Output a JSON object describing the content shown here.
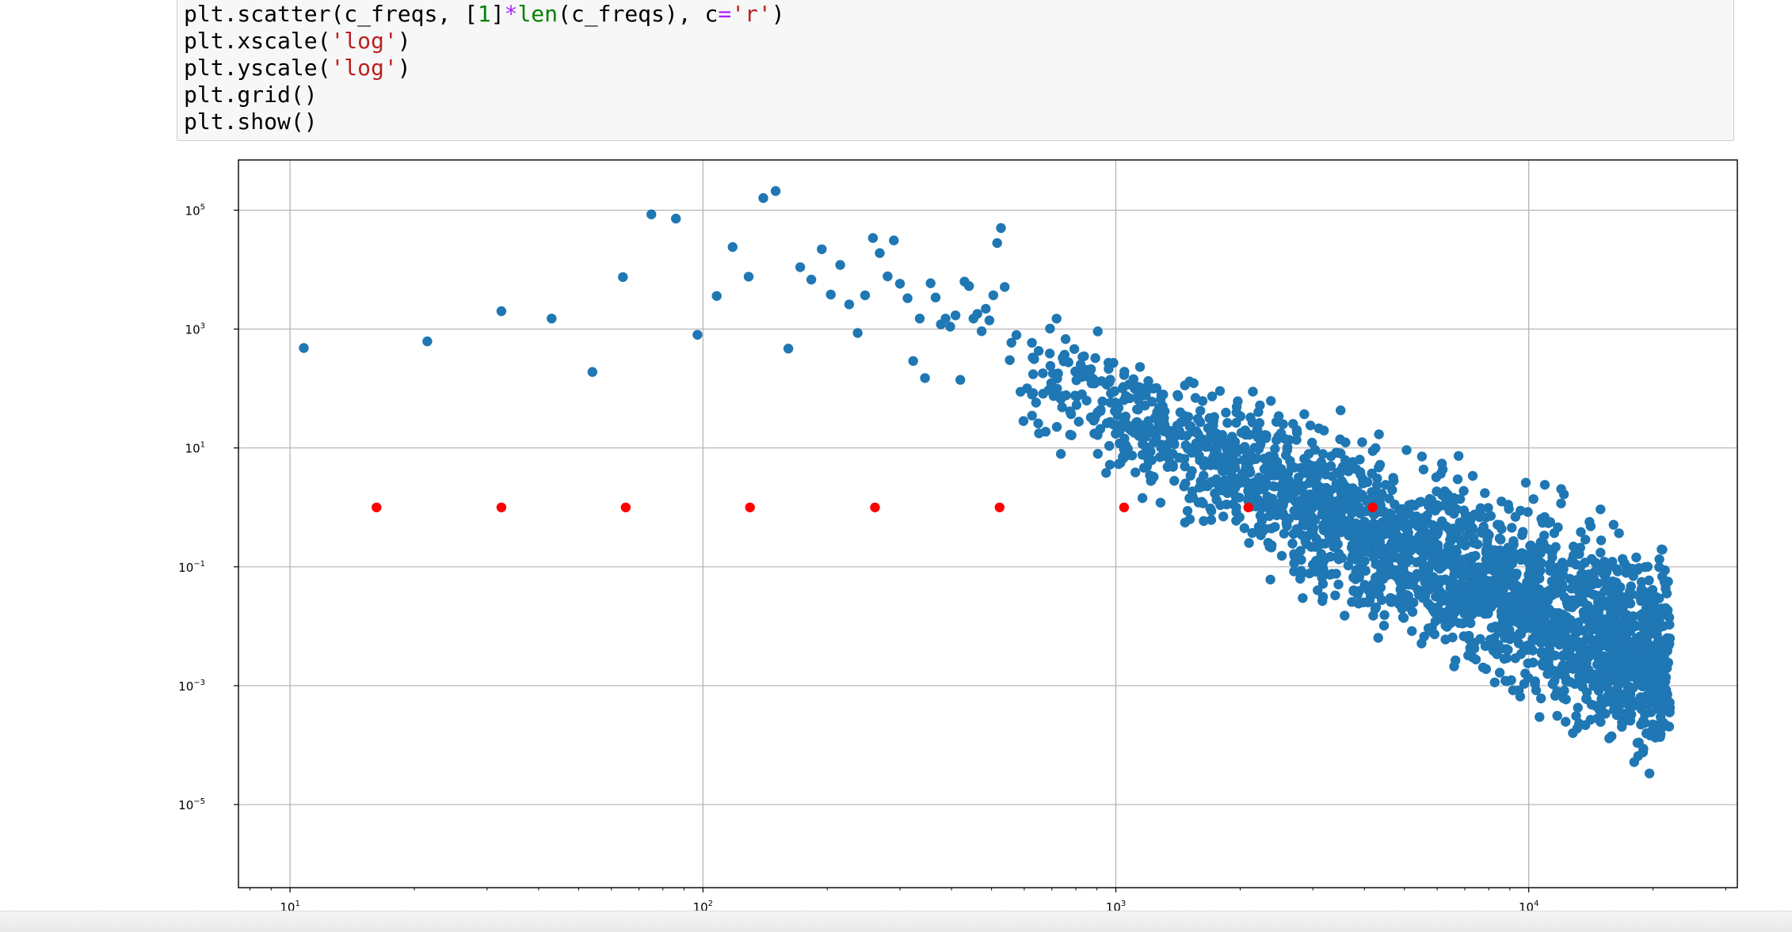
{
  "code": {
    "lines": [
      [
        {
          "t": "plt",
          "k": "plain"
        },
        {
          "t": ".scatter(c_freqs, [",
          "k": "plain"
        },
        {
          "t": "1",
          "k": "num"
        },
        {
          "t": "]",
          "k": "plain"
        },
        {
          "t": "*",
          "k": "op"
        },
        {
          "t": "len",
          "k": "num"
        },
        {
          "t": "(c_freqs), c",
          "k": "plain"
        },
        {
          "t": "=",
          "k": "op"
        },
        {
          "t": "'r'",
          "k": "str"
        },
        {
          "t": ")",
          "k": "plain"
        }
      ],
      [
        {
          "t": "plt.xscale(",
          "k": "plain"
        },
        {
          "t": "'log'",
          "k": "str"
        },
        {
          "t": ")",
          "k": "plain"
        }
      ],
      [
        {
          "t": "plt.yscale(",
          "k": "plain"
        },
        {
          "t": "'log'",
          "k": "str"
        },
        {
          "t": ")",
          "k": "plain"
        }
      ],
      [
        {
          "t": "plt.grid()",
          "k": "plain"
        }
      ],
      [
        {
          "t": "plt.show()",
          "k": "plain"
        }
      ]
    ]
  },
  "chart_data": {
    "type": "scatter",
    "xscale": "log",
    "yscale": "log",
    "grid": true,
    "xlim": [
      7.5,
      32000
    ],
    "ylim": [
      4e-07,
      700000.0
    ],
    "xticks": [
      {
        "value": 10,
        "base": "10",
        "exp": "1"
      },
      {
        "value": 100,
        "base": "10",
        "exp": "2"
      },
      {
        "value": 1000,
        "base": "10",
        "exp": "3"
      },
      {
        "value": 10000,
        "base": "10",
        "exp": "4"
      }
    ],
    "yticks": [
      {
        "value": 100000,
        "base": "10",
        "exp": "5"
      },
      {
        "value": 1000,
        "base": "10",
        "exp": "3"
      },
      {
        "value": 10,
        "base": "10",
        "exp": "1"
      },
      {
        "value": 0.1,
        "base": "10",
        "exp": "−1"
      },
      {
        "value": 0.001,
        "base": "10",
        "exp": "−3"
      },
      {
        "value": 1e-05,
        "base": "10",
        "exp": "−5"
      }
    ],
    "series": [
      {
        "color": "#1f77b4",
        "points": [
          [
            10.8,
            480
          ],
          [
            21.5,
            620
          ],
          [
            32.5,
            2000
          ],
          [
            43,
            1500
          ],
          [
            54,
            190
          ],
          [
            64,
            7500
          ],
          [
            75,
            85000
          ],
          [
            86,
            72000
          ],
          [
            97,
            800
          ],
          [
            108,
            3600
          ],
          [
            118,
            24000
          ],
          [
            129,
            7600
          ],
          [
            140,
            160000
          ],
          [
            150,
            210000
          ],
          [
            161,
            470
          ],
          [
            172,
            11000
          ],
          [
            183,
            6800
          ],
          [
            194,
            22000
          ],
          [
            204,
            3800
          ],
          [
            215,
            12000
          ],
          [
            226,
            2600
          ],
          [
            237,
            860
          ],
          [
            247,
            3700
          ],
          [
            258,
            34000
          ],
          [
            268,
            19000
          ],
          [
            280,
            7700
          ],
          [
            290,
            31000
          ],
          [
            300,
            5800
          ],
          [
            313,
            3300
          ],
          [
            323,
            290
          ],
          [
            335,
            1500
          ],
          [
            345,
            150
          ],
          [
            356,
            5900
          ],
          [
            366,
            3400
          ],
          [
            377,
            1200
          ],
          [
            387,
            1500
          ],
          [
            397,
            1100
          ],
          [
            409,
            1700
          ],
          [
            420,
            140
          ],
          [
            430,
            6300
          ],
          [
            441,
            5300
          ],
          [
            452,
            1500
          ],
          [
            462,
            1800
          ],
          [
            473,
            920
          ],
          [
            484,
            2200
          ],
          [
            494,
            1400
          ],
          [
            505,
            3700
          ],
          [
            516,
            28000
          ],
          [
            527,
            50000
          ],
          [
            538,
            5100
          ]
        ]
      },
      {
        "color": "#ff0000",
        "points": [
          [
            16.2,
            1
          ],
          [
            32.5,
            1
          ],
          [
            65,
            1
          ],
          [
            130,
            1
          ],
          [
            261,
            1
          ],
          [
            523,
            1
          ],
          [
            1047,
            1
          ],
          [
            2093,
            1
          ],
          [
            4186,
            1
          ]
        ]
      }
    ]
  }
}
